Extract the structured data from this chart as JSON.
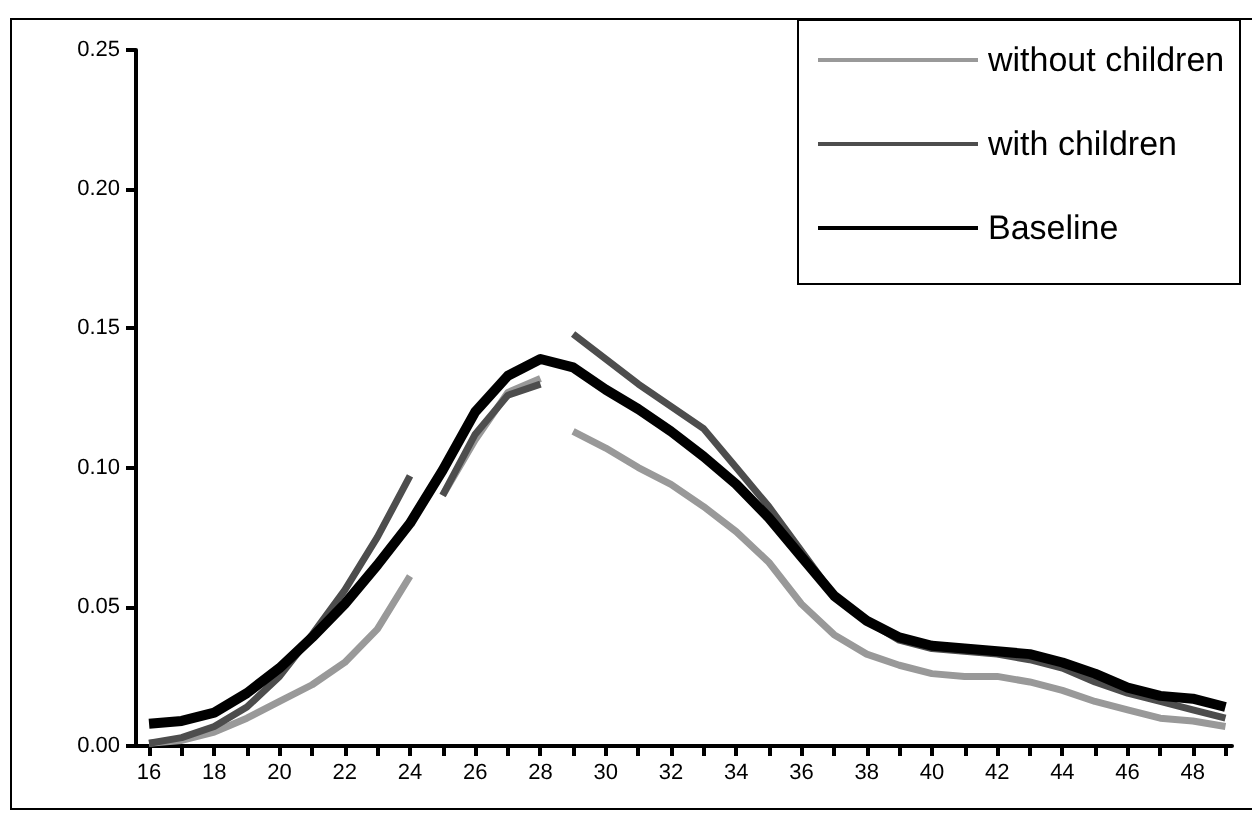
{
  "chart_data": {
    "type": "line",
    "legend": "top right",
    "grid": false,
    "marker": "none",
    "line_style": "solid",
    "xlim": [
      15.6,
      49.2
    ],
    "xticks": [
      16,
      {
        "value": 17,
        "label": null
      },
      18,
      {
        "value": 19,
        "label": null
      },
      20,
      {
        "value": 21,
        "label": null
      },
      22,
      {
        "value": 23,
        "label": null
      },
      24,
      {
        "value": 25,
        "label": null
      },
      26,
      {
        "value": 27,
        "label": null
      },
      28,
      {
        "value": 29,
        "label": null
      },
      30,
      {
        "value": 31,
        "label": null
      },
      32,
      {
        "value": 33,
        "label": null
      },
      34,
      {
        "value": 35,
        "label": null
      },
      36,
      {
        "value": 37,
        "label": null
      },
      38,
      {
        "value": 39,
        "label": null
      },
      40,
      {
        "value": 41,
        "label": null
      },
      42,
      {
        "value": 43,
        "label": null
      },
      44,
      {
        "value": 45,
        "label": null
      },
      46,
      {
        "value": 47,
        "label": null
      },
      48,
      {
        "value": 49,
        "label": null
      }
    ],
    "ylim": [
      0,
      0.25
    ],
    "yticks": [
      {
        "value": 0,
        "label": "0.00"
      },
      {
        "value": 0.05,
        "label": "0.05"
      },
      {
        "value": 0.1,
        "label": "0.10"
      },
      {
        "value": 0.15,
        "label": "0.15"
      },
      {
        "value": 0.2,
        "label": "0.20"
      },
      {
        "value": 0.25,
        "label": "0.25"
      }
    ],
    "series": [
      {
        "name": "without children",
        "color": "#999999",
        "x": [
          16,
          17,
          18,
          19,
          20,
          21,
          22,
          23,
          24,
          24.5,
          25,
          26,
          27,
          28,
          28.5,
          29,
          30,
          31,
          32,
          33,
          34,
          35,
          36,
          37,
          38,
          39,
          40,
          41,
          42,
          43,
          44,
          45,
          46,
          47,
          48,
          49
        ],
        "values": [
          0.001,
          0.002,
          0.005,
          0.01,
          0.016,
          0.022,
          0.03,
          0.042,
          0.061,
          null,
          0.09,
          0.11,
          0.127,
          0.132,
          null,
          0.113,
          0.107,
          0.1,
          0.094,
          0.086,
          0.077,
          0.066,
          0.051,
          0.04,
          0.033,
          0.029,
          0.026,
          0.025,
          0.025,
          0.023,
          0.02,
          0.016,
          0.013,
          0.01,
          0.009,
          0.007
        ]
      },
      {
        "name": "with children",
        "color": "#4d4d4d",
        "x": [
          16,
          17,
          18,
          19,
          20,
          21,
          22,
          23,
          24,
          24.5,
          25,
          26,
          27,
          28,
          28.5,
          29,
          30,
          31,
          32,
          33,
          34,
          35,
          36,
          37,
          38,
          39,
          40,
          41,
          42,
          43,
          44,
          45,
          46,
          47,
          48,
          49
        ],
        "values": [
          0.001,
          0.003,
          0.007,
          0.014,
          0.025,
          0.04,
          0.056,
          0.075,
          0.097,
          null,
          0.09,
          0.112,
          0.126,
          0.13,
          null,
          0.148,
          0.139,
          0.13,
          0.122,
          0.114,
          0.1,
          0.086,
          0.07,
          0.054,
          0.045,
          0.038,
          0.035,
          0.034,
          0.033,
          0.031,
          0.028,
          0.023,
          0.019,
          0.016,
          0.013,
          0.01
        ]
      },
      {
        "name": "Baseline",
        "color": "#000000",
        "x": [
          16,
          17,
          18,
          19,
          20,
          21,
          22,
          23,
          24,
          25,
          26,
          27,
          28,
          29,
          30,
          31,
          32,
          33,
          34,
          35,
          36,
          37,
          38,
          39,
          40,
          41,
          42,
          43,
          44,
          45,
          46,
          47,
          48,
          49
        ],
        "values": [
          0.008,
          0.009,
          0.012,
          0.019,
          0.028,
          0.039,
          0.051,
          0.065,
          0.08,
          0.099,
          0.12,
          0.133,
          0.139,
          0.136,
          0.128,
          0.121,
          0.113,
          0.104,
          0.094,
          0.082,
          0.068,
          0.054,
          0.045,
          0.039,
          0.036,
          0.035,
          0.034,
          0.033,
          0.03,
          0.026,
          0.021,
          0.018,
          0.017,
          0.014
        ]
      }
    ]
  }
}
